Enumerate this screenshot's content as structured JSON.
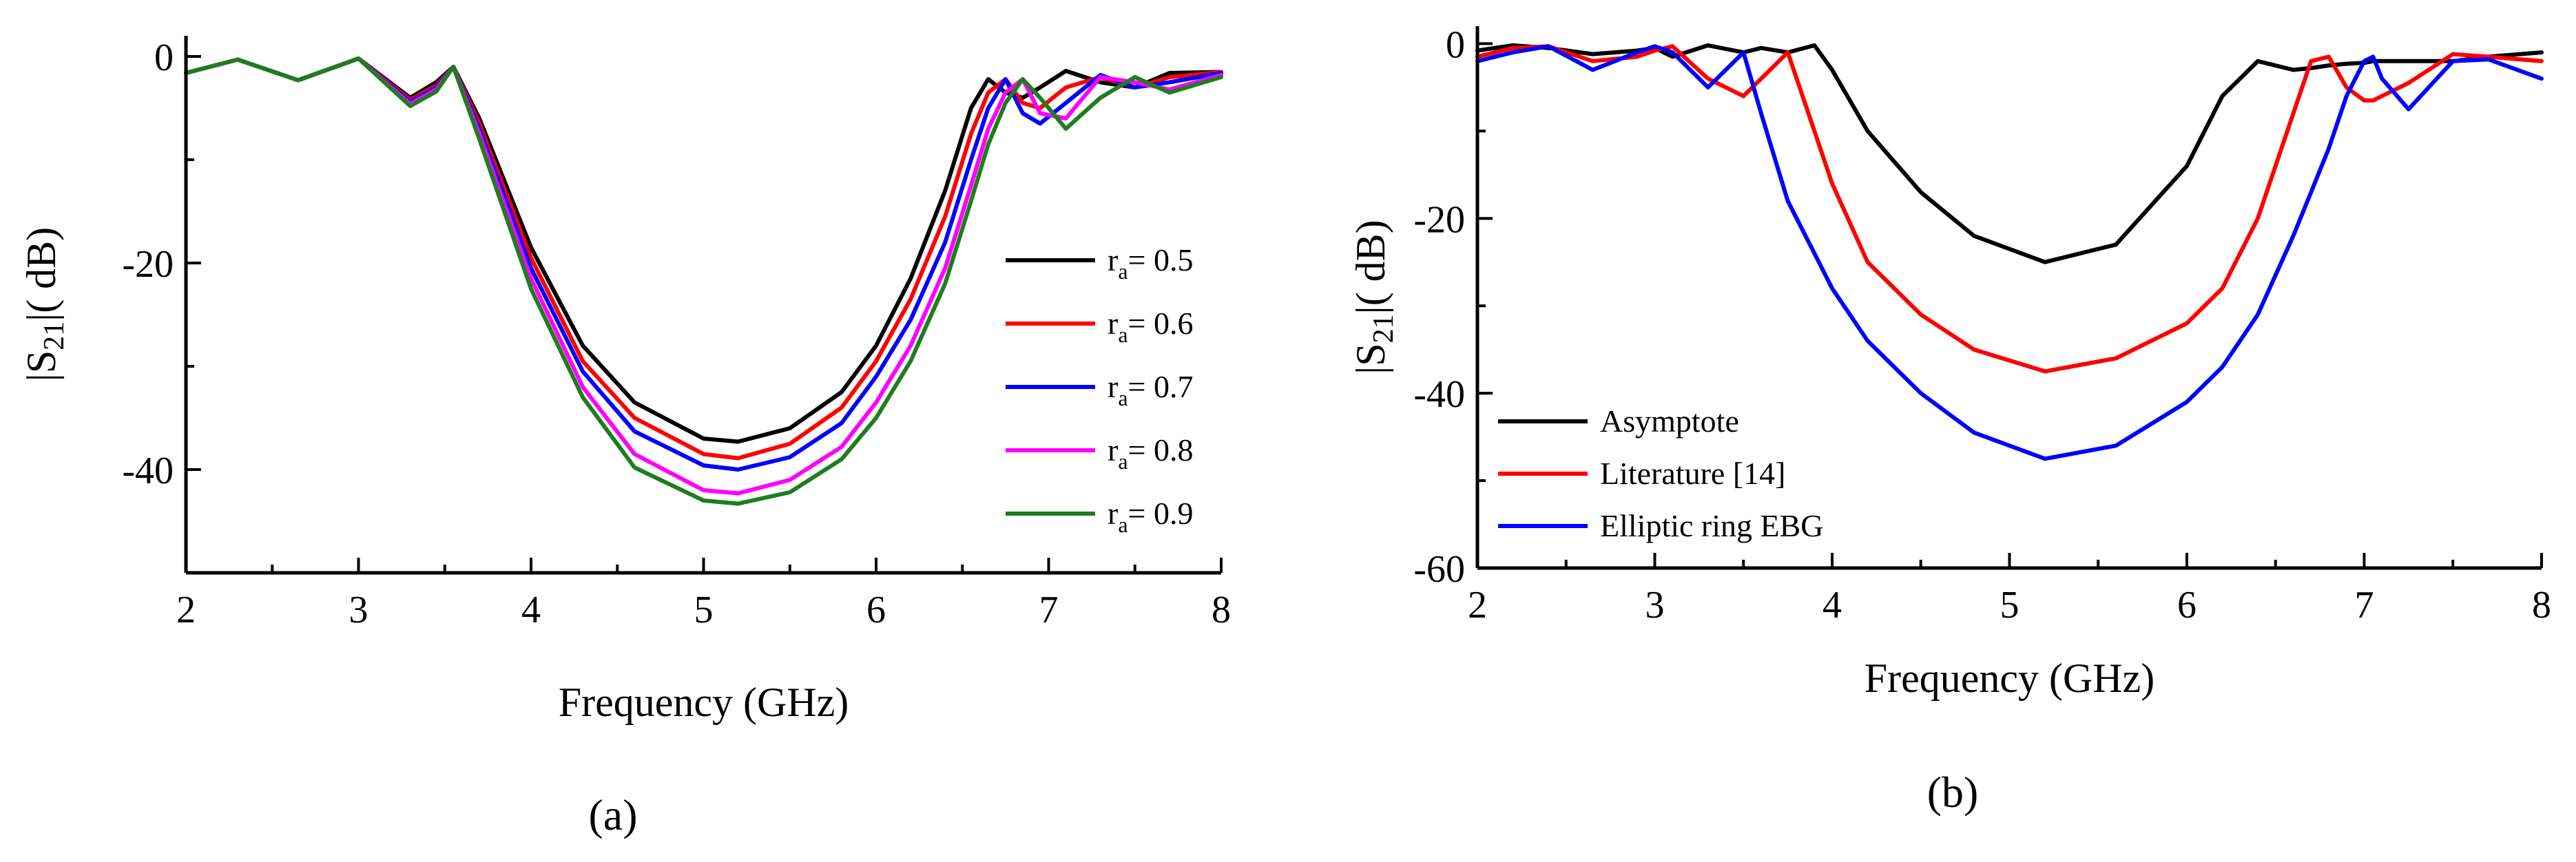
{
  "figure": {
    "panel_labels": [
      "(a)",
      "(b)"
    ]
  },
  "chart_data": [
    {
      "type": "line",
      "panel": "a",
      "title": "",
      "xlabel": "Frequency  (GHz)",
      "ylabel": "|S21|( dB)",
      "ylabel_parts": {
        "pre": "|S",
        "sub": "21",
        "post": "|( dB)"
      },
      "xlim": [
        2,
        8
      ],
      "ylim": [
        -50,
        2
      ],
      "xticks": [
        2,
        3,
        4,
        5,
        6,
        7,
        8
      ],
      "yticks": [
        0,
        -20,
        -40
      ],
      "legend_position": "right",
      "x": [
        2.0,
        2.3,
        2.65,
        3.0,
        3.3,
        3.45,
        3.55,
        3.7,
        4.0,
        4.3,
        4.6,
        5.0,
        5.2,
        5.5,
        5.8,
        6.0,
        6.2,
        6.4,
        6.55,
        6.65,
        6.75,
        6.85,
        6.95,
        7.1,
        7.3,
        7.5,
        7.7,
        8.0
      ],
      "series": [
        {
          "name": "ra= 0.5",
          "label_parts": {
            "pre": "r",
            "sub": "a",
            "post": "= 0.5"
          },
          "color": "#000000",
          "values": [
            -1.6,
            -0.3,
            -2.3,
            -0.2,
            -4.0,
            -2.5,
            -1.0,
            -6.0,
            -18.5,
            -28.0,
            -33.5,
            -37.0,
            -37.3,
            -36.0,
            -32.5,
            -28.0,
            -21.5,
            -13.0,
            -5.0,
            -2.2,
            -3.5,
            -4.0,
            -3.0,
            -1.4,
            -2.5,
            -3.0,
            -1.6,
            -1.5
          ]
        },
        {
          "name": "ra= 0.6",
          "label_parts": {
            "pre": "r",
            "sub": "a",
            "post": "= 0.6"
          },
          "color": "#ff0000",
          "values": [
            -1.6,
            -0.3,
            -2.3,
            -0.2,
            -4.2,
            -2.8,
            -1.0,
            -6.5,
            -19.5,
            -29.5,
            -35.0,
            -38.5,
            -38.9,
            -37.5,
            -34.0,
            -29.5,
            -23.5,
            -15.5,
            -7.5,
            -3.5,
            -2.2,
            -4.5,
            -5.0,
            -3.0,
            -2.0,
            -3.0,
            -2.0,
            -1.5
          ]
        },
        {
          "name": "ra= 0.7",
          "label_parts": {
            "pre": "r",
            "sub": "a",
            "post": "= 0.7"
          },
          "color": "#0000ff",
          "values": [
            -1.6,
            -0.3,
            -2.3,
            -0.2,
            -4.4,
            -3.0,
            -1.0,
            -7.0,
            -20.5,
            -30.5,
            -36.3,
            -39.6,
            -40.0,
            -38.8,
            -35.5,
            -31.0,
            -25.5,
            -18.0,
            -10.0,
            -5.0,
            -2.2,
            -5.5,
            -6.5,
            -4.5,
            -1.8,
            -3.0,
            -2.5,
            -1.6
          ]
        },
        {
          "name": "ra= 0.8",
          "label_parts": {
            "pre": "r",
            "sub": "a",
            "post": "= 0.8"
          },
          "color": "#ff00ff",
          "values": [
            -1.6,
            -0.3,
            -2.3,
            -0.2,
            -4.6,
            -3.2,
            -1.0,
            -7.5,
            -21.5,
            -32.0,
            -38.5,
            -42.0,
            -42.3,
            -41.0,
            -37.8,
            -33.5,
            -28.0,
            -20.5,
            -12.5,
            -7.0,
            -3.5,
            -2.2,
            -5.5,
            -6.0,
            -2.0,
            -2.5,
            -3.2,
            -1.8
          ]
        },
        {
          "name": "ra= 0.9",
          "label_parts": {
            "pre": "r",
            "sub": "a",
            "post": "= 0.9"
          },
          "color": "#1e7d1e",
          "values": [
            -1.6,
            -0.3,
            -2.3,
            -0.2,
            -4.8,
            -3.4,
            -1.0,
            -8.0,
            -22.5,
            -33.0,
            -39.8,
            -43.0,
            -43.3,
            -42.2,
            -39.0,
            -35.0,
            -29.5,
            -22.0,
            -14.0,
            -8.5,
            -4.5,
            -2.2,
            -4.0,
            -7.0,
            -4.0,
            -2.0,
            -3.5,
            -2.0
          ]
        }
      ]
    },
    {
      "type": "line",
      "panel": "b",
      "title": "",
      "xlabel": "Frequency  (GHz)",
      "ylabel": "|S21|( dB)",
      "ylabel_parts": {
        "pre": "|S",
        "sub": "21",
        "post": "|( dB)"
      },
      "xlim": [
        2,
        8
      ],
      "ylim": [
        -60,
        2
      ],
      "xticks": [
        2,
        3,
        4,
        5,
        6,
        7,
        8
      ],
      "yticks": [
        0,
        -20,
        -40,
        -60
      ],
      "legend_position": "bottom-left",
      "x": [
        2.0,
        2.2,
        2.4,
        2.65,
        2.9,
        3.0,
        3.1,
        3.3,
        3.5,
        3.6,
        3.75,
        3.9,
        4.0,
        4.2,
        4.5,
        4.8,
        5.2,
        5.6,
        6.0,
        6.2,
        6.4,
        6.6,
        6.7,
        6.8,
        6.9,
        7.0,
        7.05,
        7.1,
        7.25,
        7.5,
        7.7,
        8.0
      ],
      "series": [
        {
          "name": "Asymptote",
          "color": "#000000",
          "values": [
            -0.8,
            -0.2,
            -0.5,
            -1.2,
            -0.8,
            -0.5,
            -1.5,
            -0.2,
            -1.0,
            -0.5,
            -1.0,
            -0.2,
            -3.0,
            -10.0,
            -17.0,
            -22.0,
            -25.0,
            -23.0,
            -14.0,
            -6.0,
            -2.0,
            -3.0,
            -2.8,
            -2.5,
            -2.3,
            -2.2,
            -2.0,
            -2.0,
            -2.0,
            -2.0,
            -1.5,
            -1.0
          ]
        },
        {
          "name": "Literature [14]",
          "color": "#ff0000",
          "values": [
            -1.5,
            -0.5,
            -0.3,
            -2.0,
            -1.5,
            -0.8,
            -0.3,
            -4.0,
            -6.0,
            -4.0,
            -1.0,
            -10.0,
            -16.0,
            -25.0,
            -31.0,
            -35.0,
            -37.5,
            -36.0,
            -32.0,
            -28.0,
            -20.0,
            -8.0,
            -2.0,
            -1.5,
            -5.0,
            -6.5,
            -6.5,
            -6.0,
            -4.5,
            -1.2,
            -1.5,
            -2.0
          ]
        },
        {
          "name": "Elliptic ring EBG",
          "color": "#0000ff",
          "values": [
            -2.0,
            -1.0,
            -0.3,
            -3.0,
            -1.0,
            -0.3,
            -1.0,
            -5.0,
            -1.0,
            -8.0,
            -18.0,
            -24.0,
            -28.0,
            -34.0,
            -40.0,
            -44.5,
            -47.5,
            -46.0,
            -41.0,
            -37.0,
            -31.0,
            -22.0,
            -17.0,
            -12.0,
            -6.0,
            -2.0,
            -1.5,
            -4.0,
            -7.5,
            -2.0,
            -1.8,
            -4.0
          ]
        }
      ]
    }
  ]
}
